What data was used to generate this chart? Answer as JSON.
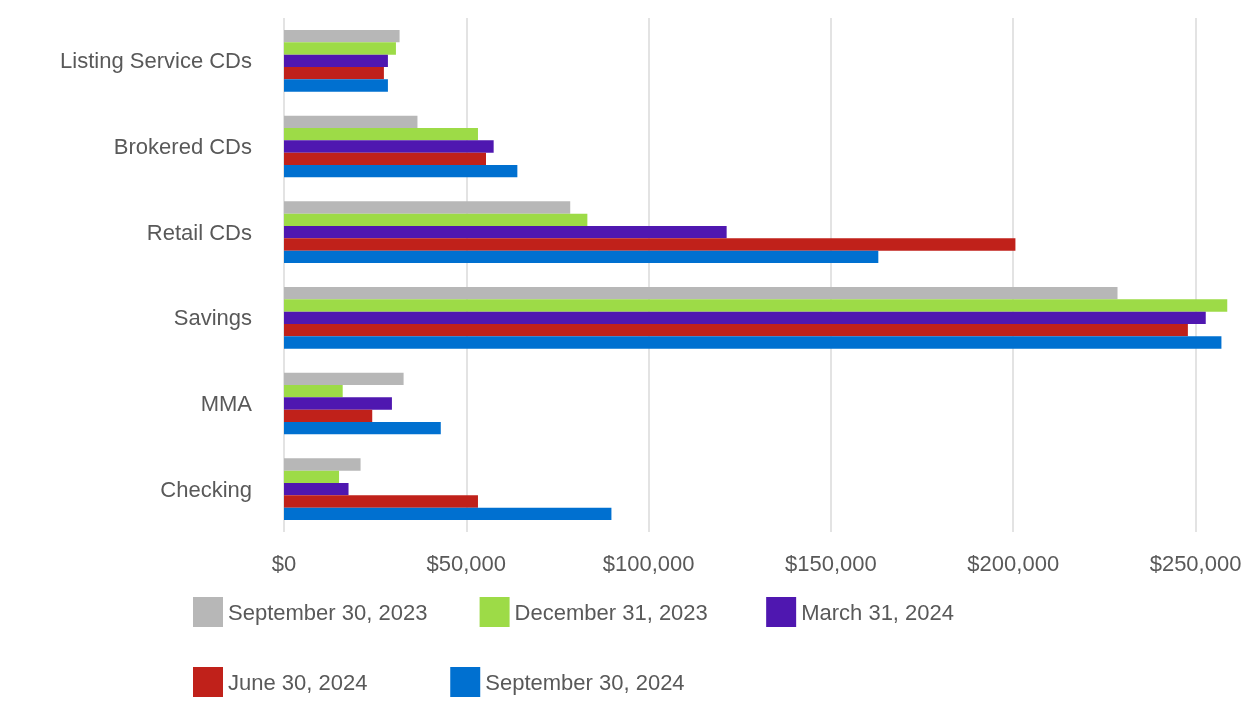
{
  "chart_data": {
    "type": "bar",
    "orientation": "horizontal",
    "categories": [
      "Listing Service CDs",
      "Brokered CDs",
      "Retail CDs",
      "Savings",
      "MMA",
      "Checking"
    ],
    "series": [
      {
        "name": "September 30, 2023",
        "color": "#b7b7b7",
        "values": [
          31700,
          36600,
          78500,
          228600,
          32800,
          21000
        ]
      },
      {
        "name": "December 31, 2023",
        "color": "#9ddb47",
        "values": [
          30700,
          53200,
          83200,
          258700,
          16100,
          15100
        ]
      },
      {
        "name": "March 31, 2024",
        "color": "#4f17b0",
        "values": [
          28500,
          57500,
          121400,
          252800,
          29600,
          17700
        ]
      },
      {
        "name": "June 30, 2024",
        "color": "#c0211a",
        "values": [
          27400,
          55400,
          200600,
          247900,
          24200,
          53200
        ]
      },
      {
        "name": "September 30, 2024",
        "color": "#0070d0",
        "values": [
          28500,
          64000,
          163000,
          257100,
          43000,
          89800
        ]
      }
    ],
    "xlim": [
      0,
      260000
    ],
    "xticks": [
      {
        "value": 0,
        "label": "$0"
      },
      {
        "value": 50000,
        "label": "$50,000"
      },
      {
        "value": 100000,
        "label": "$100,000"
      },
      {
        "value": 150000,
        "label": "$150,000"
      },
      {
        "value": 200000,
        "label": "$200,000"
      },
      {
        "value": 250000,
        "label": "$250,000"
      }
    ],
    "grid": "x",
    "legend": "bottom"
  }
}
